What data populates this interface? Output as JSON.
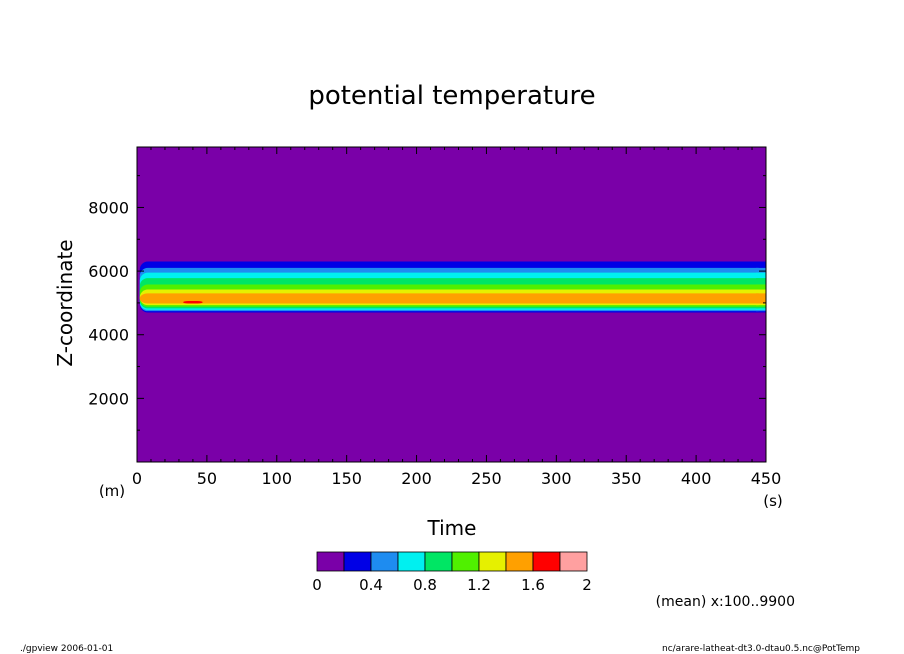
{
  "chart_data": {
    "type": "heatmap",
    "title": "potential temperature",
    "xlabel": "Time",
    "ylabel": "Z-coordinate",
    "x_unit": "(s)",
    "y_unit": "(m)",
    "xlim": [
      0,
      450
    ],
    "ylim": [
      0,
      9900
    ],
    "x_ticks": [
      0,
      50,
      100,
      150,
      200,
      250,
      300,
      350,
      400,
      450
    ],
    "y_ticks": [
      2000,
      4000,
      6000,
      8000
    ],
    "grid": false,
    "colorbar": {
      "levels": [
        0,
        0.2,
        0.4,
        0.6,
        0.8,
        1.0,
        1.2,
        1.4,
        1.6,
        1.8,
        2.0
      ],
      "tick_labels": [
        "0",
        "0.4",
        "0.8",
        "1.2",
        "1.6",
        "2"
      ],
      "colors": [
        "#7a00a8",
        "#0000e6",
        "#1e8cf0",
        "#00f0f0",
        "#00e664",
        "#50f000",
        "#e6f000",
        "#ffa000",
        "#ff0000",
        "#ffa0a0"
      ]
    },
    "bands": [
      {
        "level": 1,
        "z_bottom": 4700,
        "z_top": 6300
      },
      {
        "level": 2,
        "z_bottom": 4740,
        "z_top": 6100
      },
      {
        "level": 3,
        "z_bottom": 4780,
        "z_top": 5950
      },
      {
        "level": 4,
        "z_bottom": 4830,
        "z_top": 5780
      },
      {
        "level": 5,
        "z_bottom": 4880,
        "z_top": 5580
      },
      {
        "level": 6,
        "z_bottom": 4930,
        "z_top": 5420
      },
      {
        "level": 7,
        "z_bottom": 4980,
        "z_top": 5300
      },
      {
        "level": 8,
        "x_start": 33,
        "x_end": 47,
        "z_bottom": 4980,
        "z_top": 5060
      }
    ],
    "annotation": "(mean) x:100..9900"
  },
  "footer": {
    "left": "./gpview  2006-01-01",
    "right": "nc/arare-latheat-dt3.0-dtau0.5.nc@PotTemp"
  }
}
